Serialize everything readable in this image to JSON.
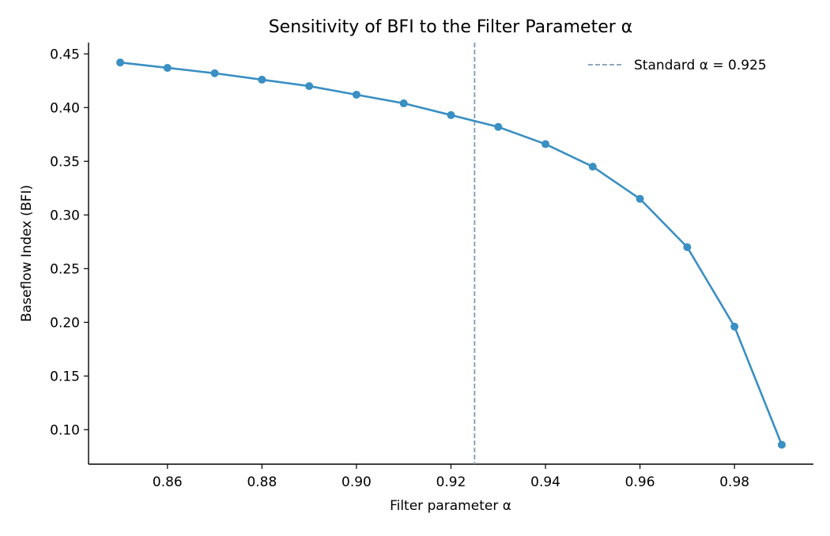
{
  "chart_data": {
    "type": "line",
    "title": "Sensitivity of BFI to the Filter Parameter α",
    "xlabel": "Filter parameter α",
    "ylabel": "Baseflow Index (BFI)",
    "xlim": [
      0.8433,
      0.9967
    ],
    "ylim": [
      0.0679,
      0.4605
    ],
    "x_ticks": [
      0.86,
      0.88,
      0.9,
      0.92,
      0.94,
      0.96,
      0.98
    ],
    "x_tick_labels": [
      "0.86",
      "0.88",
      "0.90",
      "0.92",
      "0.94",
      "0.96",
      "0.98"
    ],
    "y_ticks": [
      0.1,
      0.15,
      0.2,
      0.25,
      0.3,
      0.35,
      0.4,
      0.45
    ],
    "y_tick_labels": [
      "0.10",
      "0.15",
      "0.20",
      "0.25",
      "0.30",
      "0.35",
      "0.40",
      "0.45"
    ],
    "grid": false,
    "legend_position": "top-right",
    "series": [
      {
        "color": "#3a8fc3",
        "x": [
          0.85,
          0.86,
          0.87,
          0.88,
          0.89,
          0.9,
          0.91,
          0.92,
          0.93,
          0.94,
          0.95,
          0.96,
          0.97,
          0.98,
          0.99
        ],
        "y": [
          0.442,
          0.437,
          0.432,
          0.426,
          0.42,
          0.412,
          0.404,
          0.393,
          0.382,
          0.366,
          0.345,
          0.315,
          0.27,
          0.196,
          0.086
        ]
      }
    ],
    "reference_line": {
      "orientation": "vertical",
      "x": 0.925,
      "label": "Standard α = 0.925",
      "color": "#7f9bb5",
      "style": "dashed"
    }
  }
}
